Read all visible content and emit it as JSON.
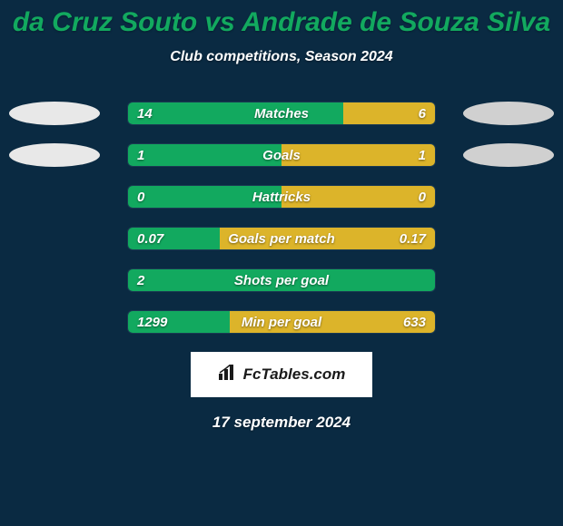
{
  "colors": {
    "background": "#0a2a42",
    "title": "#12a95f",
    "subtitle_text": "#ffffff",
    "badge_left": "#e8e8e8",
    "badge_right": "#d0d0d0",
    "bar_left": "#12a95f",
    "bar_right": "#dcb42a",
    "track": "#0a2a42",
    "track_border": "#1a3a52",
    "value_text": "#ffffff",
    "label_text": "#ffffff",
    "logo_bg": "#ffffff",
    "logo_text": "#1a1a1a",
    "date_text": "#ffffff"
  },
  "typography": {
    "title_size": 30,
    "subtitle_size": 16,
    "value_size": 15,
    "label_size": 15,
    "logo_size": 17,
    "date_size": 17
  },
  "header": {
    "title": "da Cruz Souto vs Andrade de Souza Silva",
    "subtitle": "Club competitions, Season 2024"
  },
  "stats": [
    {
      "label": "Matches",
      "left_value": "14",
      "right_value": "6",
      "left_pct": 70,
      "right_pct": 30,
      "show_left_badge": true,
      "show_right_badge": true
    },
    {
      "label": "Goals",
      "left_value": "1",
      "right_value": "1",
      "left_pct": 50,
      "right_pct": 50,
      "show_left_badge": true,
      "show_right_badge": true
    },
    {
      "label": "Hattricks",
      "left_value": "0",
      "right_value": "0",
      "left_pct": 50,
      "right_pct": 50,
      "show_left_badge": false,
      "show_right_badge": false
    },
    {
      "label": "Goals per match",
      "left_value": "0.07",
      "right_value": "0.17",
      "left_pct": 30,
      "right_pct": 70,
      "show_left_badge": false,
      "show_right_badge": false
    },
    {
      "label": "Shots per goal",
      "left_value": "2",
      "right_value": "",
      "left_pct": 100,
      "right_pct": 0,
      "show_left_badge": false,
      "show_right_badge": false
    },
    {
      "label": "Min per goal",
      "left_value": "1299",
      "right_value": "633",
      "left_pct": 33,
      "right_pct": 67,
      "show_left_badge": false,
      "show_right_badge": false
    }
  ],
  "footer": {
    "logo_text": "FcTables.com",
    "date": "17 september 2024"
  }
}
